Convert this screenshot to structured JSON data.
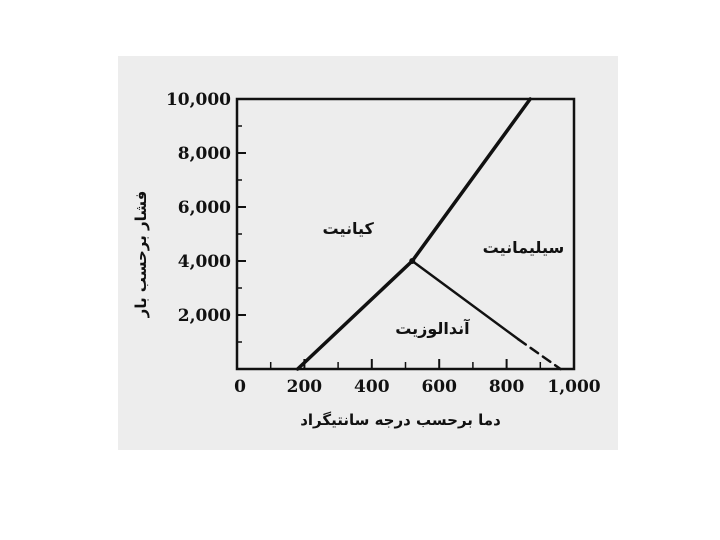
{
  "chart_data": {
    "type": "line",
    "xlabel": "دما برحسب درجه سانتیگراد",
    "ylabel": "فشار برحسب بار",
    "xlim": [
      0,
      1000
    ],
    "ylim": [
      0,
      10000
    ],
    "x_ticks": [
      0,
      200,
      400,
      600,
      800,
      1000
    ],
    "x_tick_labels": [
      "0",
      "200",
      "400",
      "600",
      "800",
      "1,000"
    ],
    "y_ticks": [
      2000,
      4000,
      6000,
      8000,
      10000
    ],
    "y_tick_labels": [
      "2,000",
      "4,000",
      "6,000",
      "8,000",
      "10,000"
    ],
    "grid": false,
    "triple_point": {
      "x": 520,
      "y": 4000
    },
    "series": [
      {
        "id": "kyanite-andalusite",
        "style": "solid",
        "x": [
          180,
          520
        ],
        "y": [
          0,
          4000
        ]
      },
      {
        "id": "kyanite-sillimanite",
        "style": "solid",
        "x": [
          520,
          870
        ],
        "y": [
          4000,
          10000
        ]
      },
      {
        "id": "andalusite-sillimanite",
        "style": "solid",
        "x": [
          520,
          835
        ],
        "y": [
          4000,
          1100
        ]
      },
      {
        "id": "andalusite-sillimanite-extrapolated",
        "style": "dashed",
        "x": [
          835,
          960
        ],
        "y": [
          1100,
          0
        ]
      }
    ],
    "regions": [
      {
        "label": "کیانیت",
        "x": 330,
        "y": 5000
      },
      {
        "label": "سیلیمانیت",
        "x": 850,
        "y": 4300
      },
      {
        "label": "آندالوزیت",
        "x": 580,
        "y": 1300
      }
    ],
    "line_color": "#111111"
  }
}
